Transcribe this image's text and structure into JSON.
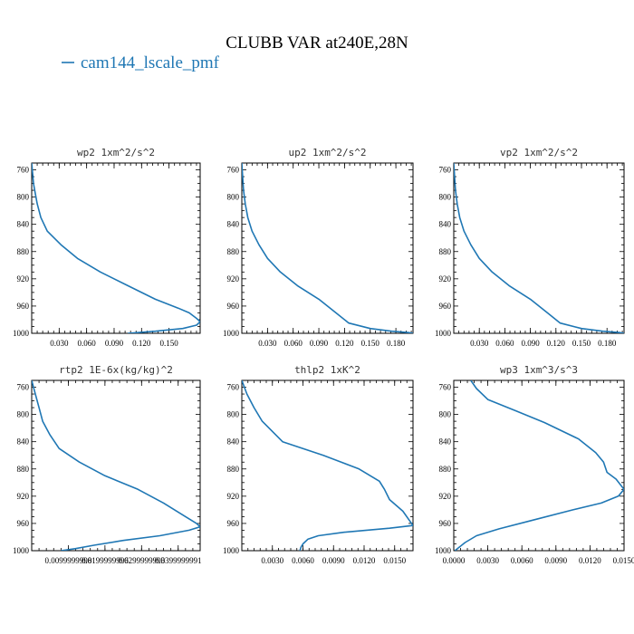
{
  "title": "CLUBB VAR at240E,28N",
  "legend": {
    "label": "cam144_lscale_pmf",
    "color": "#1f77b4"
  },
  "chart_data": [
    {
      "type": "line",
      "title": "wp2  1xm^2/s^2",
      "ylim": [
        1000,
        750
      ],
      "xlim": [
        0.0,
        0.184
      ],
      "yticks": [
        760,
        800,
        840,
        880,
        920,
        960,
        1000
      ],
      "xticks": [
        0.03,
        0.06,
        0.09,
        0.12,
        0.15
      ],
      "xtick_labels": [
        "0.030",
        "0.060",
        "0.090",
        "0.120",
        "0.150"
      ],
      "series": [
        {
          "color": "#1f77b4",
          "x": [
            0.0,
            0.001,
            0.002,
            0.004,
            0.006,
            0.01,
            0.017,
            0.032,
            0.05,
            0.075,
            0.105,
            0.135,
            0.16,
            0.172,
            0.18,
            0.184,
            0.18,
            0.165,
            0.135,
            0.105
          ],
          "y": [
            750,
            765,
            780,
            795,
            810,
            830,
            850,
            870,
            890,
            910,
            930,
            950,
            963,
            970,
            978,
            983,
            988,
            993,
            997,
            1000
          ]
        }
      ]
    },
    {
      "type": "line",
      "title": "up2  1xm^2/s^2",
      "ylim": [
        1000,
        750
      ],
      "xlim": [
        0.0,
        0.2
      ],
      "yticks": [
        760,
        800,
        840,
        880,
        920,
        960,
        1000
      ],
      "xticks": [
        0.03,
        0.06,
        0.09,
        0.12,
        0.15,
        0.18
      ],
      "xtick_labels": [
        "0.030",
        "0.060",
        "0.090",
        "0.120",
        "0.150",
        "0.180"
      ],
      "series": [
        {
          "color": "#1f77b4",
          "x": [
            0.0,
            0.001,
            0.002,
            0.004,
            0.007,
            0.012,
            0.02,
            0.03,
            0.045,
            0.065,
            0.09,
            0.11,
            0.125,
            0.15,
            0.175,
            0.195,
            0.2
          ],
          "y": [
            750,
            770,
            790,
            810,
            830,
            850,
            870,
            890,
            910,
            930,
            950,
            970,
            985,
            993,
            997,
            999,
            1000
          ]
        }
      ]
    },
    {
      "type": "line",
      "title": "vp2  1xm^2/s^2",
      "ylim": [
        1000,
        750
      ],
      "xlim": [
        0.0,
        0.2
      ],
      "yticks": [
        760,
        800,
        840,
        880,
        920,
        960,
        1000
      ],
      "xticks": [
        0.03,
        0.06,
        0.09,
        0.12,
        0.15,
        0.18
      ],
      "xtick_labels": [
        "0.030",
        "0.060",
        "0.090",
        "0.120",
        "0.150",
        "0.180"
      ],
      "series": [
        {
          "color": "#1f77b4",
          "x": [
            0.0,
            0.001,
            0.002,
            0.004,
            0.007,
            0.012,
            0.02,
            0.03,
            0.045,
            0.065,
            0.09,
            0.11,
            0.125,
            0.15,
            0.175,
            0.195,
            0.2
          ],
          "y": [
            750,
            770,
            790,
            810,
            830,
            850,
            870,
            890,
            910,
            930,
            950,
            970,
            985,
            993,
            997,
            999,
            1000
          ]
        }
      ]
    },
    {
      "type": "line",
      "title": "rtp2  1E-6x(kg/kg)^2",
      "ylim": [
        1000,
        750
      ],
      "xlim": [
        0.0,
        0.046
      ],
      "yticks": [
        760,
        800,
        840,
        880,
        920,
        960,
        1000
      ],
      "xticks": [
        0.01,
        0.02,
        0.03,
        0.04
      ],
      "xtick_labels": [
        "0.0099999998",
        "0.0199999996",
        "0.0299999993",
        "0.0399999991"
      ],
      "series": [
        {
          "color": "#1f77b4",
          "x": [
            0.0,
            0.001,
            0.002,
            0.003,
            0.005,
            0.0075,
            0.013,
            0.02,
            0.029,
            0.036,
            0.042,
            0.045,
            0.046,
            0.043,
            0.035,
            0.025,
            0.017,
            0.012,
            0.008
          ],
          "y": [
            750,
            770,
            790,
            810,
            830,
            850,
            870,
            890,
            910,
            930,
            950,
            960,
            965,
            970,
            978,
            985,
            992,
            997,
            1000
          ]
        }
      ]
    },
    {
      "type": "line",
      "title": "thlp2  1xK^2",
      "ylim": [
        1000,
        750
      ],
      "xlim": [
        0.0,
        0.0168
      ],
      "yticks": [
        760,
        800,
        840,
        880,
        920,
        960,
        1000
      ],
      "xticks": [
        0.003,
        0.006,
        0.009,
        0.012,
        0.015
      ],
      "xtick_labels": [
        "0.0030",
        "0.0060",
        "0.0090",
        "0.0120",
        "0.0150"
      ],
      "series": [
        {
          "color": "#1f77b4",
          "x": [
            0.0,
            0.0005,
            0.0012,
            0.002,
            0.004,
            0.008,
            0.0115,
            0.0135,
            0.014,
            0.0145,
            0.0158,
            0.0168,
            0.0145,
            0.01,
            0.0075,
            0.0065,
            0.006,
            0.0058,
            0.0057
          ],
          "y": [
            750,
            770,
            790,
            810,
            840,
            860,
            880,
            898,
            910,
            925,
            942,
            963,
            967,
            973,
            978,
            983,
            990,
            995,
            1000
          ]
        }
      ]
    },
    {
      "type": "line",
      "title": "wp3  1xm^3/s^3",
      "ylim": [
        1000,
        750
      ],
      "xlim": [
        0.0,
        0.015
      ],
      "yticks": [
        760,
        800,
        840,
        880,
        920,
        960,
        1000
      ],
      "xticks": [
        0.0,
        0.003,
        0.006,
        0.009,
        0.012,
        0.015
      ],
      "xtick_labels": [
        "0.0000",
        "0.0030",
        "0.0060",
        "0.0090",
        "0.0120",
        "0.0150"
      ],
      "series": [
        {
          "color": "#1f77b4",
          "x": [
            0.0015,
            0.002,
            0.003,
            0.0055,
            0.008,
            0.011,
            0.0125,
            0.0132,
            0.0135,
            0.0143,
            0.015,
            0.0145,
            0.013,
            0.0105,
            0.007,
            0.004,
            0.002,
            0.001,
            0.0004,
            0.0001
          ],
          "y": [
            750,
            762,
            778,
            795,
            812,
            836,
            856,
            870,
            885,
            895,
            910,
            920,
            930,
            940,
            955,
            968,
            978,
            988,
            996,
            1000
          ]
        }
      ]
    }
  ]
}
